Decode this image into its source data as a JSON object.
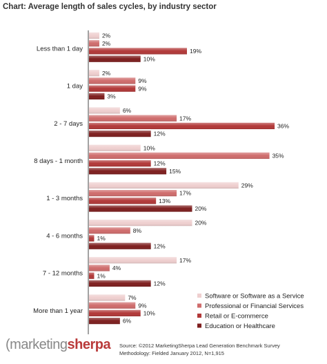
{
  "chart_data": {
    "type": "bar",
    "orientation": "horizontal",
    "title": "Chart: Average length of sales cycles, by industry sector",
    "categories": [
      "Less than 1 day",
      "1 day",
      "2 - 7 days",
      "8 days - 1 month",
      "1 - 3 months",
      "4 - 6 months",
      "7 - 12 months",
      "More than 1 year"
    ],
    "series": [
      {
        "name": "Software or Software as a Service",
        "color": "#efcfcf",
        "values": [
          2,
          2,
          6,
          10,
          29,
          20,
          17,
          7
        ]
      },
      {
        "name": "Professional or Financial Services",
        "color": "#cf6c6c",
        "values": [
          2,
          9,
          17,
          35,
          17,
          8,
          4,
          9
        ]
      },
      {
        "name": "Retail or E-commerce",
        "color": "#b23838",
        "values": [
          19,
          9,
          36,
          12,
          13,
          1,
          1,
          10
        ]
      },
      {
        "name": "Education or Healthcare",
        "color": "#7e1e1e",
        "values": [
          10,
          3,
          12,
          15,
          20,
          12,
          12,
          6
        ]
      }
    ],
    "value_suffix": "%",
    "xlim": [
      0,
      38
    ],
    "legend_position": "bottom-right",
    "grid": false
  },
  "logo": {
    "part1": "marketing",
    "part2": "sherpa"
  },
  "source": {
    "line1": "Source: ©2012 MarketingSherpa Lead Generation Benchmark Survey",
    "line2": "Methodology: Fielded January 2012, N=1,915"
  }
}
